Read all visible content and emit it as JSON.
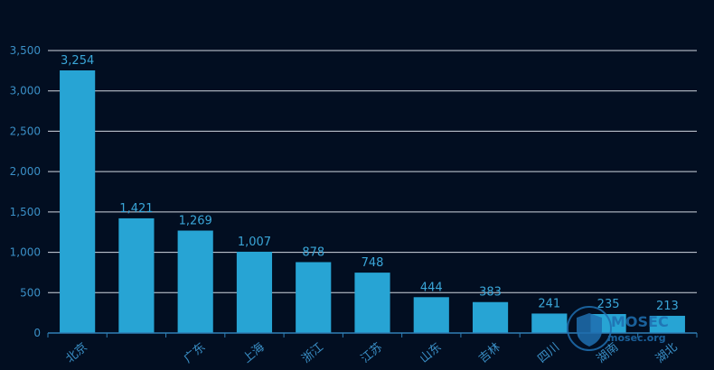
{
  "colors": {
    "background": "#020e21",
    "bar": "#27a4d4",
    "grid": "#d0d6e0",
    "axis": "#2f7fb5",
    "tick_text": "#3a8fc6",
    "label_text": "#3aa6d8",
    "watermark": "#1f6fb0"
  },
  "watermark": {
    "brand": "MOSEC",
    "url": "mosec.org"
  },
  "chart_data": {
    "type": "bar",
    "categories": [
      "北京",
      "",
      "广东",
      "上海",
      "浙江",
      "江苏",
      "山东",
      "吉林",
      "四川",
      "湖南",
      "湖北"
    ],
    "values": [
      3254,
      1421,
      1269,
      1007,
      878,
      748,
      444,
      383,
      241,
      235,
      213
    ],
    "data_labels": [
      "3,254",
      "1,421",
      "1,269",
      "1,007",
      "878",
      "748",
      "444",
      "383",
      "241",
      "235",
      "213"
    ],
    "title": "",
    "xlabel": "",
    "ylabel": "",
    "ylim": [
      0,
      3500
    ],
    "yticks": [
      0,
      500,
      1000,
      1500,
      2000,
      2500,
      3000,
      3500
    ],
    "ytick_labels": [
      "0",
      "500",
      "1,000",
      "1,500",
      "2,000",
      "2,500",
      "3,000",
      "3,500"
    ],
    "grid": true,
    "legend": "none"
  }
}
